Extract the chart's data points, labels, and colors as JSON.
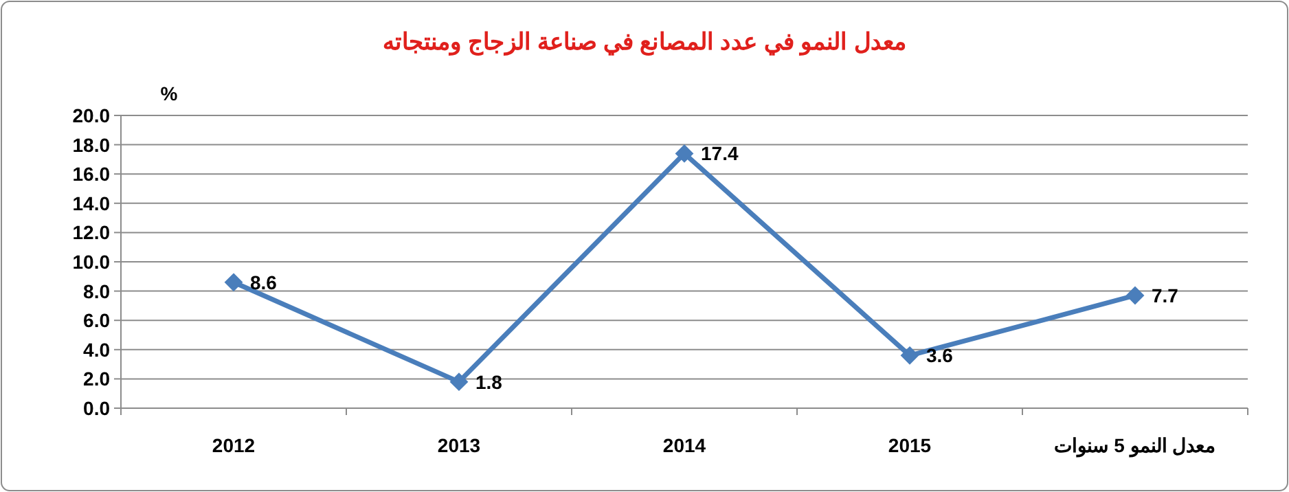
{
  "chart_data": {
    "type": "line",
    "title": "معدل النمو في عدد المصانع في صناعة الزجاج ومنتجاته",
    "ylabel": "%",
    "categories": [
      "2012",
      "2013",
      "2014",
      "2015",
      "معدل النمو 5 سنوات"
    ],
    "series": [
      {
        "color": "#4a7ebb",
        "values": [
          8.6,
          1.8,
          17.4,
          3.6,
          7.7
        ]
      }
    ],
    "value_labels": [
      "8.6",
      "1.8",
      "17.4",
      "3.6",
      "7.7"
    ],
    "ylim": [
      0,
      20
    ],
    "yticks": [
      {
        "value": 0,
        "label": "0.0"
      },
      {
        "value": 2,
        "label": "2.0"
      },
      {
        "value": 4,
        "label": "4.0"
      },
      {
        "value": 6,
        "label": "6.0"
      },
      {
        "value": 8,
        "label": "8.0"
      },
      {
        "value": 10,
        "label": "10.0"
      },
      {
        "value": 12,
        "label": "12.0"
      },
      {
        "value": 14,
        "label": "14.0"
      },
      {
        "value": 16,
        "label": "16.0"
      },
      {
        "value": 18,
        "label": "18.0"
      },
      {
        "value": 20,
        "label": "20.0"
      }
    ],
    "grid": "y",
    "marker": "diamond",
    "line_style": "solid"
  }
}
